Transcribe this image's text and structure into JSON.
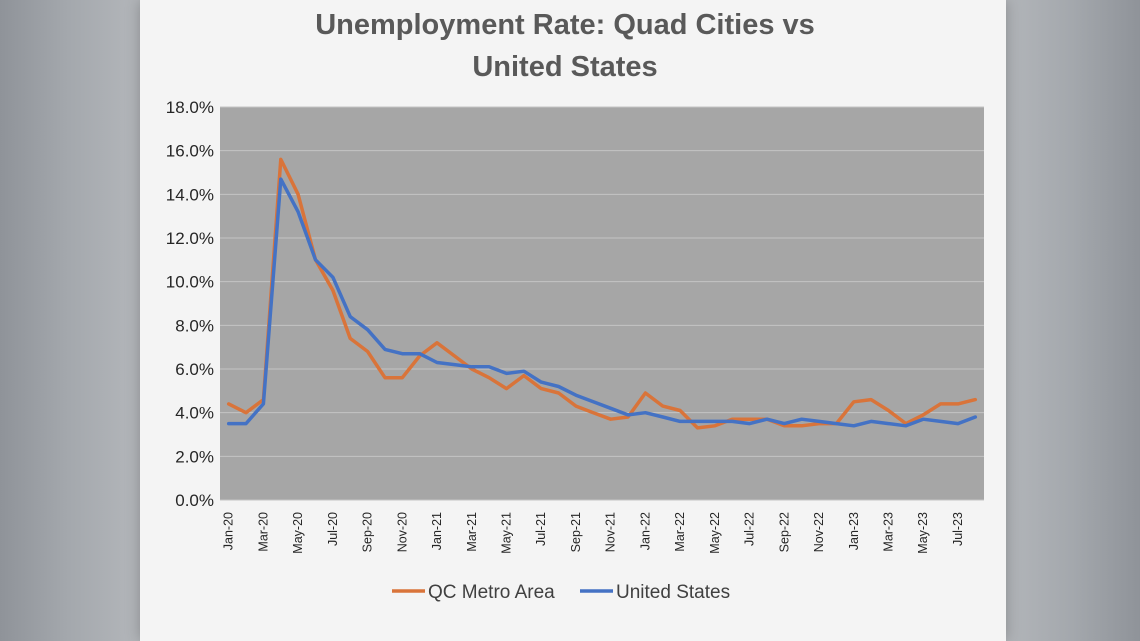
{
  "colors": {
    "plot_background": "#a6a6a6",
    "gridline": "#c4c4c4",
    "qc_series": "#d9743a",
    "us_series": "#4472c4",
    "title": "#595959"
  },
  "chart_data": {
    "type": "line",
    "title_line1": "Unemployment Rate: Quad Cities vs",
    "title_line2": "United States",
    "xlabel": "",
    "ylabel": "",
    "ylim": [
      0,
      18
    ],
    "ytick_values": [
      0,
      2,
      4,
      6,
      8,
      10,
      12,
      14,
      16,
      18
    ],
    "ytick_labels": [
      "0.0%",
      "2.0%",
      "4.0%",
      "6.0%",
      "8.0%",
      "10.0%",
      "12.0%",
      "14.0%",
      "16.0%",
      "18.0%"
    ],
    "x_labels": [
      "Jan-20",
      "Mar-20",
      "May-20",
      "Jul-20",
      "Sep-20",
      "Nov-20",
      "Jan-21",
      "Mar-21",
      "May-21",
      "Jul-21",
      "Sep-21",
      "Nov-21",
      "Jan-22",
      "Mar-22",
      "May-22",
      "Jul-22",
      "Sep-22",
      "Nov-22",
      "Jan-23",
      "Mar-23",
      "May-23",
      "Jul-23"
    ],
    "x": [
      "Jan-20",
      "Feb-20",
      "Mar-20",
      "Apr-20",
      "May-20",
      "Jun-20",
      "Jul-20",
      "Aug-20",
      "Sep-20",
      "Oct-20",
      "Nov-20",
      "Dec-20",
      "Jan-21",
      "Feb-21",
      "Mar-21",
      "Apr-21",
      "May-21",
      "Jun-21",
      "Jul-21",
      "Aug-21",
      "Sep-21",
      "Oct-21",
      "Nov-21",
      "Dec-21",
      "Jan-22",
      "Feb-22",
      "Mar-22",
      "Apr-22",
      "May-22",
      "Jun-22",
      "Jul-22",
      "Aug-22",
      "Sep-22",
      "Oct-22",
      "Nov-22",
      "Dec-22",
      "Jan-23",
      "Feb-23",
      "Mar-23",
      "Apr-23",
      "May-23",
      "Jun-23",
      "Jul-23",
      "Aug-23"
    ],
    "series": [
      {
        "name": "QC Metro Area",
        "values": [
          4.4,
          4.0,
          4.6,
          15.6,
          14.0,
          11.0,
          9.6,
          7.4,
          6.8,
          5.6,
          5.6,
          6.6,
          7.2,
          6.6,
          6.0,
          5.6,
          5.1,
          5.7,
          5.1,
          4.9,
          4.3,
          4.0,
          3.7,
          3.8,
          4.9,
          4.3,
          4.1,
          3.3,
          3.4,
          3.7,
          3.7,
          3.7,
          3.4,
          3.4,
          3.5,
          3.5,
          4.5,
          4.6,
          4.1,
          3.5,
          3.9,
          4.4,
          4.4,
          4.6
        ]
      },
      {
        "name": "United States",
        "values": [
          3.5,
          3.5,
          4.4,
          14.7,
          13.2,
          11.0,
          10.2,
          8.4,
          7.8,
          6.9,
          6.7,
          6.7,
          6.3,
          6.2,
          6.1,
          6.1,
          5.8,
          5.9,
          5.4,
          5.2,
          4.8,
          4.5,
          4.2,
          3.9,
          4.0,
          3.8,
          3.6,
          3.6,
          3.6,
          3.6,
          3.5,
          3.7,
          3.5,
          3.7,
          3.6,
          3.5,
          3.4,
          3.6,
          3.5,
          3.4,
          3.7,
          3.6,
          3.5,
          3.8
        ]
      }
    ],
    "grid": true,
    "legend_position": "bottom"
  }
}
